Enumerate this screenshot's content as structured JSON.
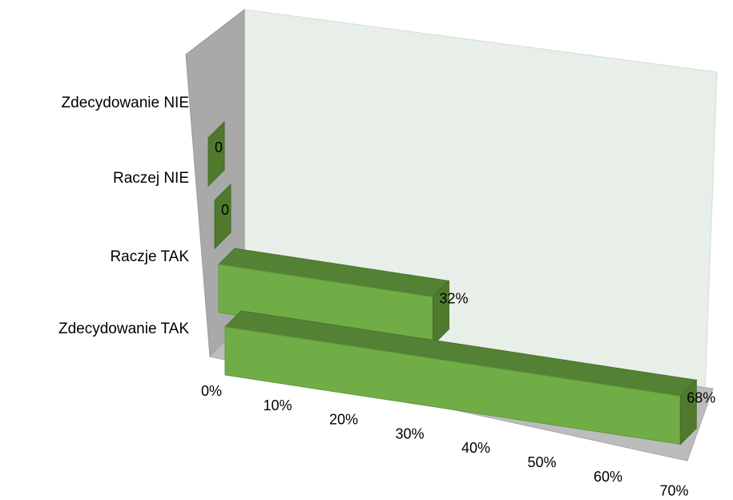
{
  "chart_data": {
    "type": "bar",
    "orientation": "horizontal",
    "style": "3d",
    "title": "",
    "xlabel": "",
    "ylabel": "",
    "grid": false,
    "legend": "none",
    "xlim": [
      0,
      70
    ],
    "x_ticks": [
      "0%",
      "10%",
      "20%",
      "30%",
      "40%",
      "50%",
      "60%",
      "70%"
    ],
    "categories": [
      "Zdecydowanie TAK",
      "Raczje TAK",
      "Raczej NIE",
      "Zdecydowanie NIE"
    ],
    "values": [
      68,
      32,
      0,
      0
    ],
    "data_labels": [
      "68%",
      "32%",
      "0",
      "0"
    ],
    "colors": {
      "bar_front": "#70ad47",
      "bar_top": "#548235",
      "bar_end": "#4f7a2e",
      "back_wall": "#e8efe8",
      "side_wall": "#a9a9a9",
      "floor": "#bcbcbc"
    }
  }
}
